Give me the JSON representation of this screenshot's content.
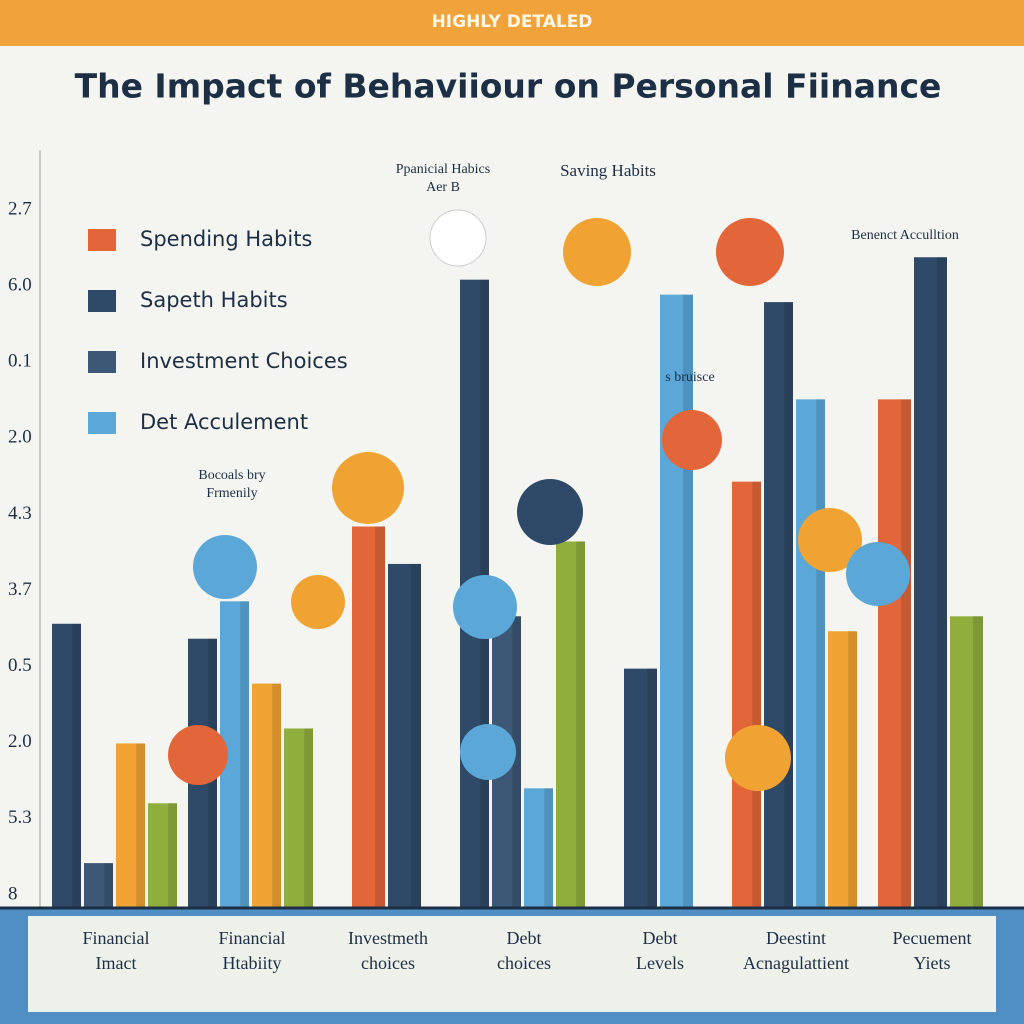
{
  "banner": "HIGHLY DETALED",
  "chart_data": {
    "type": "bar",
    "title": "The Impact of Behaviiour  on Personal Fiinance",
    "y_labels": [
      "2.7",
      "6.0",
      "0.1",
      "2.0",
      "4.3",
      "3.7",
      "0.5",
      "2.0",
      "5.3",
      "8"
    ],
    "categories": [
      [
        "Financial",
        "Imact"
      ],
      [
        "Financial",
        "Htabiity"
      ],
      [
        "Investmeth",
        "choices"
      ],
      [
        "Debt",
        "choices"
      ],
      [
        "Debt",
        "Levels"
      ],
      [
        "Deestint",
        "Acnagulattient"
      ],
      [
        "Pecuement",
        "Yiets"
      ]
    ],
    "ylim": [
      0,
      100
    ],
    "series": [
      {
        "name": "Spending Habits",
        "color": "#e3663a",
        "values": [
          null,
          null,
          51,
          null,
          null,
          57,
          68
        ]
      },
      {
        "name": "Sapeth Habits",
        "color": "#2f4a68",
        "values": [
          38,
          36,
          46,
          84,
          32,
          81,
          87
        ]
      },
      {
        "name": "Investment Choices",
        "color": "#3c5876",
        "values": [
          6,
          null,
          null,
          39,
          null,
          null,
          null
        ]
      },
      {
        "name": "Det Acculement",
        "color": "#5aa7d8",
        "values": [
          null,
          41,
          null,
          16,
          82,
          68,
          null
        ]
      },
      {
        "color": "#f0a332",
        "values": [
          22,
          30,
          null,
          null,
          null,
          37,
          null
        ]
      },
      {
        "color": "#8fae3c",
        "values": [
          14,
          24,
          null,
          49,
          null,
          null,
          39
        ]
      }
    ],
    "annotations": [
      [
        "Ppanicial Habics",
        "Aer B"
      ],
      [
        "Saving Habits"
      ],
      [
        "Benenct Acculltion"
      ],
      [
        "Bocoals bry",
        "Frmenily"
      ],
      [
        "s bruisce"
      ]
    ]
  }
}
